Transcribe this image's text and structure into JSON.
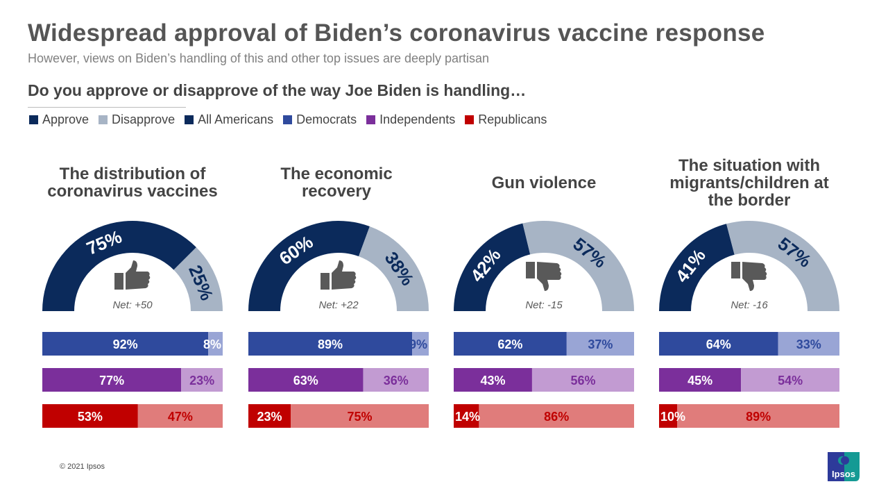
{
  "title": "Widespread approval of Biden’s coronavirus vaccine response",
  "subtitle": "However, views on Biden’s handling of this and other top issues are deeply partisan",
  "question": "Do you approve or disapprove of the way Joe Biden is handling…",
  "legend": [
    {
      "label": "Approve",
      "color": "#0b2a5b"
    },
    {
      "label": "Disapprove",
      "color": "#a7b4c5"
    },
    {
      "label": "All Americans",
      "color": "#0b2a5b"
    },
    {
      "label": "Democrats",
      "color": "#2f4a9d"
    },
    {
      "label": "Independents",
      "color": "#7b2f9b"
    },
    {
      "label": "Republicans",
      "color": "#c00000"
    }
  ],
  "copyright": "© 2021 Ipsos",
  "logo_text": "Ipsos",
  "chart_data": {
    "type": "gauge-and-stacked-bar",
    "series_order": [
      "All Americans",
      "Democrats",
      "Independents",
      "Republicans"
    ],
    "colors": {
      "all": {
        "approve": "#0b2a5b",
        "disapprove": "#a7b4c5"
      },
      "dem": {
        "approve": "#2f4a9d",
        "disapprove": "#99a5d5",
        "text": "#2f4a9d"
      },
      "ind": {
        "approve": "#7b2f9b",
        "disapprove": "#c29bd2",
        "text": "#7b2f9b"
      },
      "rep": {
        "approve": "#c00000",
        "disapprove": "#e07c7b",
        "text": "#c00000"
      }
    },
    "panels": [
      {
        "category": "The distribution of coronavirus vaccines",
        "icon": "thumbs-up-icon",
        "net": "Net: +50",
        "all": {
          "approve": 75,
          "disapprove": 25
        },
        "dem": {
          "approve": 92,
          "disapprove": 8
        },
        "ind": {
          "approve": 77,
          "disapprove": 23
        },
        "rep": {
          "approve": 53,
          "disapprove": 47
        }
      },
      {
        "category": "The economic recovery",
        "icon": "thumbs-up-icon",
        "net": "Net: +22",
        "all": {
          "approve": 60,
          "disapprove": 38
        },
        "dem": {
          "approve": 89,
          "disapprove": 9
        },
        "ind": {
          "approve": 63,
          "disapprove": 36
        },
        "rep": {
          "approve": 23,
          "disapprove": 75
        }
      },
      {
        "category": "Gun violence",
        "icon": "thumbs-down-icon",
        "net": "Net: -15",
        "all": {
          "approve": 42,
          "disapprove": 57
        },
        "dem": {
          "approve": 62,
          "disapprove": 37
        },
        "ind": {
          "approve": 43,
          "disapprove": 56
        },
        "rep": {
          "approve": 14,
          "disapprove": 86
        }
      },
      {
        "category": "The situation with migrants/children at the border",
        "icon": "thumbs-down-icon",
        "net": "Net: -16",
        "all": {
          "approve": 41,
          "disapprove": 57
        },
        "dem": {
          "approve": 64,
          "disapprove": 33
        },
        "ind": {
          "approve": 45,
          "disapprove": 54
        },
        "rep": {
          "approve": 10,
          "disapprove": 89
        }
      }
    ]
  }
}
